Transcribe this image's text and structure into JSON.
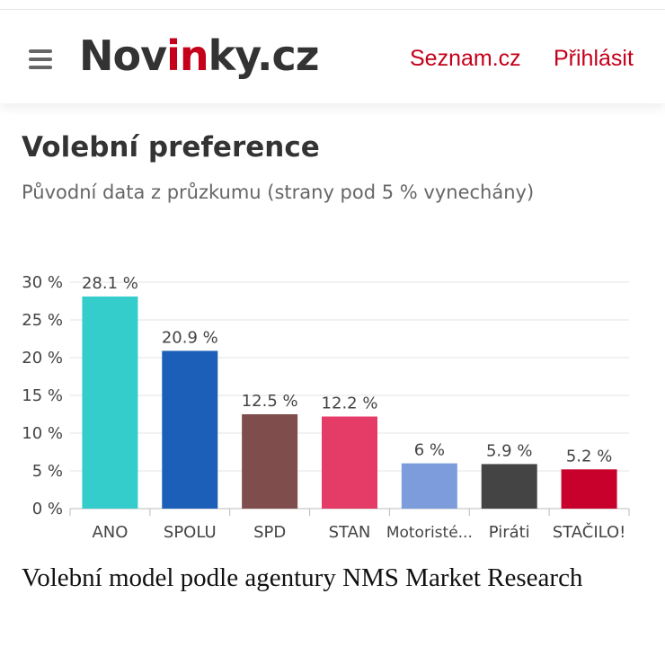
{
  "header": {
    "logo": {
      "pre": "Nov",
      "accent": "in",
      "post": "ky.cz"
    },
    "links": {
      "seznam": "Seznam.cz",
      "login": "Přihlásit"
    }
  },
  "article": {
    "title": "Volební preference",
    "subtitle": "Původní data z průzkumu (strany pod 5 % vynechány)",
    "caption": "Volební model podle agentury NMS Market Research"
  },
  "chart_data": {
    "type": "bar",
    "categories": [
      "ANO",
      "SPOLU",
      "SPD",
      "STAN",
      "Motoristé...",
      "Piráti",
      "STAČILO!"
    ],
    "values": [
      28.1,
      20.9,
      12.5,
      12.2,
      6,
      5.9,
      5.2
    ],
    "data_labels": [
      "28.1 %",
      "20.9 %",
      "12.5 %",
      "12.2 %",
      "6 %",
      "5.9 %",
      "5.2 %"
    ],
    "colors": [
      "#35cccc",
      "#1c5fb8",
      "#7f4d4b",
      "#e43c67",
      "#7c9cdc",
      "#444444",
      "#c8002c"
    ],
    "yticks": [
      "0 %",
      "5 %",
      "10 %",
      "15 %",
      "20 %",
      "25 %",
      "30 %"
    ],
    "ylim": [
      0,
      30
    ],
    "title": "",
    "xlabel": "",
    "ylabel": "",
    "grid": true,
    "legend": "none"
  }
}
